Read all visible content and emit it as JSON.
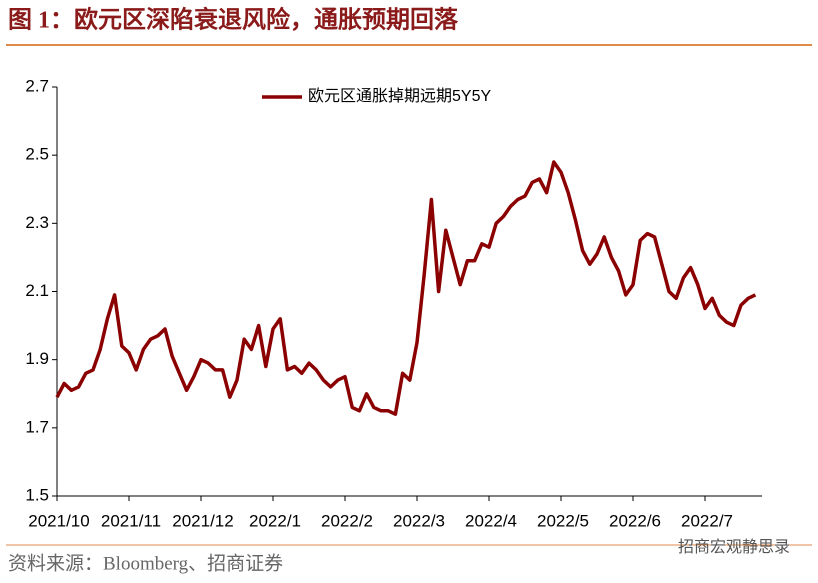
{
  "chart_data": {
    "type": "line",
    "title": "图 1：欧元区深陷衰退风险，通胀预期回落",
    "source": "资料来源：Bloomberg、招商证券",
    "watermark": "招商宏观静思录",
    "categories": [
      "2021/10",
      null,
      null,
      null,
      null,
      null,
      null,
      null,
      null,
      null,
      "2021/11",
      null,
      null,
      null,
      null,
      null,
      null,
      null,
      null,
      null,
      "2021/12",
      null,
      null,
      null,
      null,
      null,
      null,
      null,
      null,
      null,
      "2022/1",
      null,
      null,
      null,
      null,
      null,
      null,
      null,
      null,
      null,
      "2022/2",
      null,
      null,
      null,
      null,
      null,
      null,
      null,
      null,
      null,
      "2022/3",
      null,
      null,
      null,
      null,
      null,
      null,
      null,
      null,
      null,
      "2022/4",
      null,
      null,
      null,
      null,
      null,
      null,
      null,
      null,
      null,
      "2022/5",
      null,
      null,
      null,
      null,
      null,
      null,
      null,
      null,
      null,
      "2022/6",
      null,
      null,
      null,
      null,
      null,
      null,
      null,
      null,
      null,
      "2022/7",
      null,
      null,
      null,
      null,
      null,
      null,
      null
    ],
    "series": [
      {
        "name": "欧元区通胀掉期远期5Y5Y",
        "color": "#8b0000",
        "values": [
          1.79,
          1.83,
          1.81,
          1.82,
          1.86,
          1.87,
          1.93,
          2.02,
          2.09,
          1.94,
          1.92,
          1.87,
          1.93,
          1.96,
          1.97,
          1.99,
          1.91,
          1.86,
          1.81,
          1.85,
          1.9,
          1.89,
          1.87,
          1.87,
          1.79,
          1.84,
          1.96,
          1.93,
          2.0,
          1.88,
          1.99,
          2.02,
          1.87,
          1.88,
          1.86,
          1.89,
          1.87,
          1.84,
          1.82,
          1.84,
          1.85,
          1.76,
          1.75,
          1.8,
          1.76,
          1.75,
          1.75,
          1.74,
          1.86,
          1.84,
          1.95,
          2.15,
          2.37,
          2.1,
          2.28,
          2.2,
          2.12,
          2.19,
          2.19,
          2.24,
          2.23,
          2.3,
          2.32,
          2.35,
          2.37,
          2.38,
          2.42,
          2.43,
          2.39,
          2.48,
          2.45,
          2.39,
          2.31,
          2.22,
          2.18,
          2.21,
          2.26,
          2.2,
          2.16,
          2.09,
          2.12,
          2.25,
          2.27,
          2.26,
          2.18,
          2.1,
          2.08,
          2.14,
          2.17,
          2.12,
          2.05,
          2.08,
          2.03,
          2.01,
          2.0,
          2.06,
          2.08,
          2.09
        ]
      }
    ],
    "ylim": [
      1.5,
      2.7
    ],
    "yticks": [
      1.5,
      1.7,
      1.9,
      2.1,
      2.3,
      2.5,
      2.7
    ],
    "grid": false
  }
}
